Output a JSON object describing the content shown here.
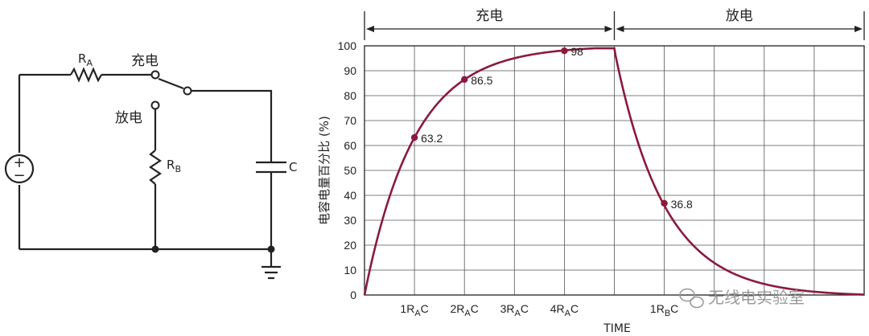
{
  "circuit": {
    "r_a_label": "R",
    "r_a_sub": "A",
    "r_b_label": "R",
    "r_b_sub": "B",
    "c_label": "C",
    "charge_label": "充电",
    "discharge_label": "放电",
    "source_plus": "+",
    "source_minus": "−"
  },
  "chart_data": {
    "type": "line",
    "ylabel": "电容电量百分比 (%)",
    "xlabel": "TIME",
    "ylim": [
      0,
      100
    ],
    "yticks": [
      0,
      10,
      20,
      30,
      40,
      50,
      60,
      70,
      80,
      90,
      100
    ],
    "grid": true,
    "phases": [
      {
        "label": "充电",
        "range_tau": [
          0,
          5
        ]
      },
      {
        "label": "放电",
        "range_tau": [
          5,
          10
        ]
      }
    ],
    "xticks": [
      {
        "tau": 1,
        "main": "1R",
        "sub": "A",
        "tail": "C"
      },
      {
        "tau": 2,
        "main": "2R",
        "sub": "A",
        "tail": "C"
      },
      {
        "tau": 3,
        "main": "3R",
        "sub": "A",
        "tail": "C"
      },
      {
        "tau": 4,
        "main": "4R",
        "sub": "A",
        "tail": "C"
      },
      {
        "tau": 6,
        "main": "1R",
        "sub": "B",
        "tail": "C"
      }
    ],
    "annotated_points": [
      {
        "tau": 1,
        "value": 63.2,
        "label": "63.2"
      },
      {
        "tau": 2,
        "value": 86.5,
        "label": "86.5"
      },
      {
        "tau": 4,
        "value": 98,
        "label": "98"
      },
      {
        "tau": 6,
        "value": 36.8,
        "label": "36.8"
      }
    ],
    "series": [
      {
        "curve": "charge-hold-discharge",
        "x_tau": [
          0,
          0.5,
          1,
          1.5,
          2,
          2.5,
          3,
          3.5,
          4,
          4.1,
          5,
          5.25,
          5.5,
          5.75,
          6,
          6.5,
          7,
          7.5,
          8,
          8.5,
          9,
          10
        ],
        "values": [
          0,
          39.3,
          63.2,
          77.7,
          86.5,
          91.8,
          95.0,
          97.0,
          98.2,
          98.5,
          99,
          77.9,
          60.7,
          47.2,
          36.8,
          22.3,
          13.5,
          8.2,
          5.0,
          3.0,
          0.4,
          0
        ]
      }
    ]
  },
  "watermark": {
    "text": "无线电实验室",
    "icon": "wechat-icon"
  },
  "colors": {
    "curve": "#8b1a3c",
    "grid": "#555555",
    "ink": "#222222"
  }
}
